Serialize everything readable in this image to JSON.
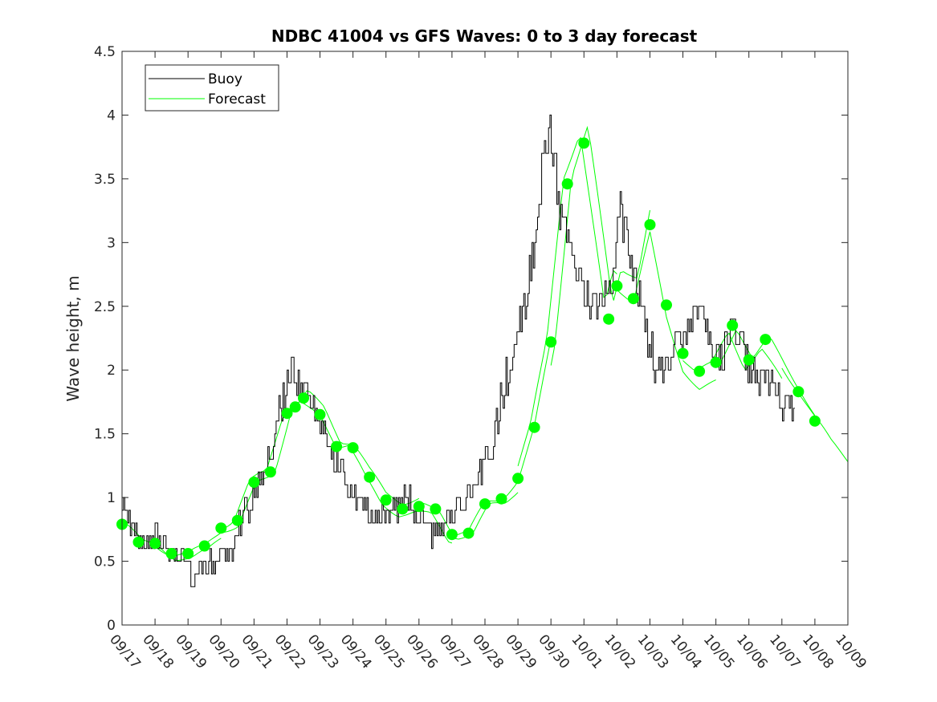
{
  "chart_data": {
    "type": "line",
    "title": "NDBC 41004 vs GFS Waves: 0 to 3 day forecast",
    "xlabel": "",
    "ylabel": "Wave height, m",
    "xlim": [
      0,
      22
    ],
    "ylim": [
      0,
      4.5
    ],
    "x_tick_labels": [
      "09/17",
      "09/18",
      "09/19",
      "09/20",
      "09/21",
      "09/22",
      "09/23",
      "09/24",
      "09/25",
      "09/26",
      "09/27",
      "09/28",
      "09/29",
      "09/30",
      "10/01",
      "10/02",
      "10/03",
      "10/04",
      "10/05",
      "10/06",
      "10/07",
      "10/08",
      "10/09"
    ],
    "y_ticks": [
      0,
      0.5,
      1,
      1.5,
      2,
      2.5,
      3,
      3.5,
      4,
      4.5
    ],
    "y_tick_labels": [
      "0",
      "0.5",
      "1",
      "1.5",
      "2",
      "2.5",
      "3",
      "3.5",
      "4",
      "4.5"
    ],
    "legend": {
      "placement": "top-left",
      "entries": [
        "Buoy",
        "Forecast"
      ]
    },
    "colors": {
      "buoy": "#000000",
      "forecast": "#00ff00",
      "marker": "#00ff00",
      "axis": "#262626"
    },
    "buoy_anchors": [
      [
        0,
        0.9
      ],
      [
        0.3,
        0.8
      ],
      [
        0.6,
        0.65
      ],
      [
        1.0,
        0.7
      ],
      [
        1.5,
        0.6
      ],
      [
        2.0,
        0.5
      ],
      [
        2.1,
        0.4
      ],
      [
        2.3,
        0.45
      ],
      [
        2.8,
        0.5
      ],
      [
        3.2,
        0.55
      ],
      [
        3.5,
        0.75
      ],
      [
        3.9,
        0.95
      ],
      [
        4.3,
        1.2
      ],
      [
        4.6,
        1.5
      ],
      [
        4.9,
        1.8
      ],
      [
        5.1,
        2.0
      ],
      [
        5.4,
        1.9
      ],
      [
        5.7,
        1.75
      ],
      [
        6.0,
        1.6
      ],
      [
        6.3,
        1.3
      ],
      [
        6.6,
        1.25
      ],
      [
        7.0,
        1.0
      ],
      [
        7.4,
        0.9
      ],
      [
        7.7,
        0.85
      ],
      [
        8.0,
        0.85
      ],
      [
        8.3,
        0.9
      ],
      [
        8.7,
        1.0
      ],
      [
        9.0,
        0.85
      ],
      [
        9.3,
        0.75
      ],
      [
        9.6,
        0.7
      ],
      [
        10.0,
        0.85
      ],
      [
        10.4,
        1.0
      ],
      [
        10.8,
        1.15
      ],
      [
        11.2,
        1.4
      ],
      [
        11.6,
        1.9
      ],
      [
        12.0,
        2.3
      ],
      [
        12.5,
        3.0
      ],
      [
        12.8,
        3.8
      ],
      [
        13.0,
        3.9
      ],
      [
        13.2,
        3.4
      ],
      [
        13.5,
        3.0
      ],
      [
        13.8,
        2.7
      ],
      [
        14.2,
        2.5
      ],
      [
        14.5,
        2.55
      ],
      [
        14.8,
        2.6
      ],
      [
        15.1,
        3.2
      ],
      [
        15.4,
        2.9
      ],
      [
        15.8,
        2.4
      ],
      [
        16.1,
        2.1
      ],
      [
        16.4,
        1.95
      ],
      [
        16.8,
        2.2
      ],
      [
        17.2,
        2.3
      ],
      [
        17.5,
        2.6
      ],
      [
        17.8,
        2.2
      ],
      [
        18.2,
        2.1
      ],
      [
        18.5,
        2.4
      ],
      [
        18.8,
        2.2
      ],
      [
        19.1,
        2.0
      ],
      [
        19.5,
        1.9
      ],
      [
        19.9,
        1.8
      ],
      [
        20.2,
        1.65
      ],
      [
        20.4,
        1.7
      ]
    ],
    "forecast_markers": [
      [
        0.0,
        0.79
      ],
      [
        0.5,
        0.65
      ],
      [
        1.0,
        0.64
      ],
      [
        1.5,
        0.56
      ],
      [
        2.0,
        0.56
      ],
      [
        2.5,
        0.62
      ],
      [
        3.0,
        0.76
      ],
      [
        3.5,
        0.82
      ],
      [
        4.0,
        1.12
      ],
      [
        4.5,
        1.2
      ],
      [
        5.0,
        1.66
      ],
      [
        5.25,
        1.71
      ],
      [
        5.5,
        1.78
      ],
      [
        6.0,
        1.65
      ],
      [
        6.5,
        1.4
      ],
      [
        7.0,
        1.39
      ],
      [
        7.5,
        1.16
      ],
      [
        8.0,
        0.98
      ],
      [
        8.5,
        0.91
      ],
      [
        9.0,
        0.93
      ],
      [
        9.5,
        0.91
      ],
      [
        10.0,
        0.71
      ],
      [
        10.5,
        0.72
      ],
      [
        11.0,
        0.95
      ],
      [
        11.5,
        0.99
      ],
      [
        12.0,
        1.15
      ],
      [
        12.5,
        1.55
      ],
      [
        13.0,
        2.22
      ],
      [
        13.5,
        3.46
      ],
      [
        14.0,
        3.78
      ],
      [
        14.75,
        2.4
      ],
      [
        15.0,
        2.66
      ],
      [
        15.5,
        2.56
      ],
      [
        16.0,
        3.14
      ],
      [
        16.5,
        2.51
      ],
      [
        17.0,
        2.13
      ],
      [
        17.5,
        1.99
      ],
      [
        18.0,
        2.06
      ],
      [
        18.5,
        2.35
      ],
      [
        19.0,
        2.08
      ],
      [
        19.5,
        2.24
      ],
      [
        20.5,
        1.83
      ],
      [
        21.0,
        1.6
      ]
    ],
    "forecast_tail": [
      [
        21.0,
        1.6
      ],
      [
        21.5,
        1.4
      ],
      [
        22.0,
        1.26
      ]
    ]
  }
}
